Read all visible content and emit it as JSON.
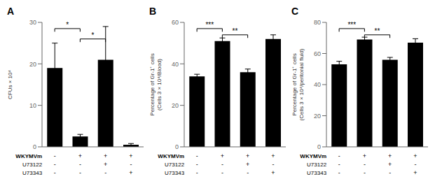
{
  "chart_data": [
    {
      "type": "bar",
      "title": "A",
      "y_label": "CFUs × 10⁴",
      "categories": [
        null,
        null,
        null,
        null
      ],
      "tick_labels": "y",
      "values": [
        19,
        2.5,
        21,
        0.5
      ],
      "errors": [
        6,
        0.5,
        8,
        0.3
      ],
      "color": "#000000",
      "ylim": [
        0,
        30
      ],
      "yticks": [
        0,
        10,
        20,
        30
      ],
      "annotations": [
        {
          "bars": [
            0,
            1
          ],
          "y": 28.5,
          "text": "*"
        },
        {
          "bars": [
            1,
            2
          ],
          "y": 26.0,
          "text": "*"
        }
      ],
      "x_table": [
        {
          "name": "WKYMVm",
          "labels": [
            "-",
            "+",
            "+",
            "+"
          ]
        },
        {
          "name": "U73122",
          "labels": [
            "-",
            "-",
            "+",
            "-"
          ]
        },
        {
          "name": "U73343",
          "labels": [
            "-",
            "-",
            "-",
            "+"
          ]
        }
      ]
    },
    {
      "type": "bar",
      "title": "B",
      "y_label": "Percentage of Gr-1⁺ cells\n(Cells 3 × 10⁴/Blood)",
      "categories": [
        null,
        null,
        null,
        null
      ],
      "tick_labels": "y",
      "values": [
        34,
        51,
        36,
        52
      ],
      "errors": [
        1.0,
        1.5,
        1.5,
        2.0
      ],
      "color": "#000000",
      "ylim": [
        0,
        60
      ],
      "yticks": [
        0,
        20,
        40,
        60
      ],
      "annotations": [
        {
          "bars": [
            0,
            1
          ],
          "y": 57,
          "text": "***"
        },
        {
          "bars": [
            1,
            2
          ],
          "y": 54,
          "text": "**"
        }
      ],
      "x_table": [
        {
          "name": "WKYMVm",
          "labels": [
            "-",
            "+",
            "+",
            "+"
          ]
        },
        {
          "name": "U73122",
          "labels": [
            "-",
            "-",
            "+",
            "-"
          ]
        },
        {
          "name": "U73343",
          "labels": [
            "-",
            "-",
            "-",
            "+"
          ]
        }
      ]
    },
    {
      "type": "bar",
      "title": "C",
      "y_label": "Percentage of Gr-1⁺ cells\n(Cells 3 × 10⁴/peritonial fluid)",
      "categories": [
        null,
        null,
        null,
        null
      ],
      "tick_labels": "y",
      "values": [
        53,
        69,
        56,
        67
      ],
      "errors": [
        2.0,
        1.5,
        1.5,
        2.5
      ],
      "color": "#000000",
      "ylim": [
        0,
        80
      ],
      "yticks": [
        0,
        20,
        40,
        60,
        80
      ],
      "annotations": [
        {
          "bars": [
            0,
            1
          ],
          "y": 76,
          "text": "***"
        },
        {
          "bars": [
            1,
            2
          ],
          "y": 72,
          "text": "**"
        }
      ],
      "x_table": [
        {
          "name": "WKYMVm",
          "labels": [
            "-",
            "+",
            "+",
            "+"
          ]
        },
        {
          "name": "U73122",
          "labels": [
            "-",
            "-",
            "+",
            "-"
          ]
        },
        {
          "name": "U73343",
          "labels": [
            "-",
            "-",
            "-",
            "+"
          ]
        }
      ]
    }
  ]
}
